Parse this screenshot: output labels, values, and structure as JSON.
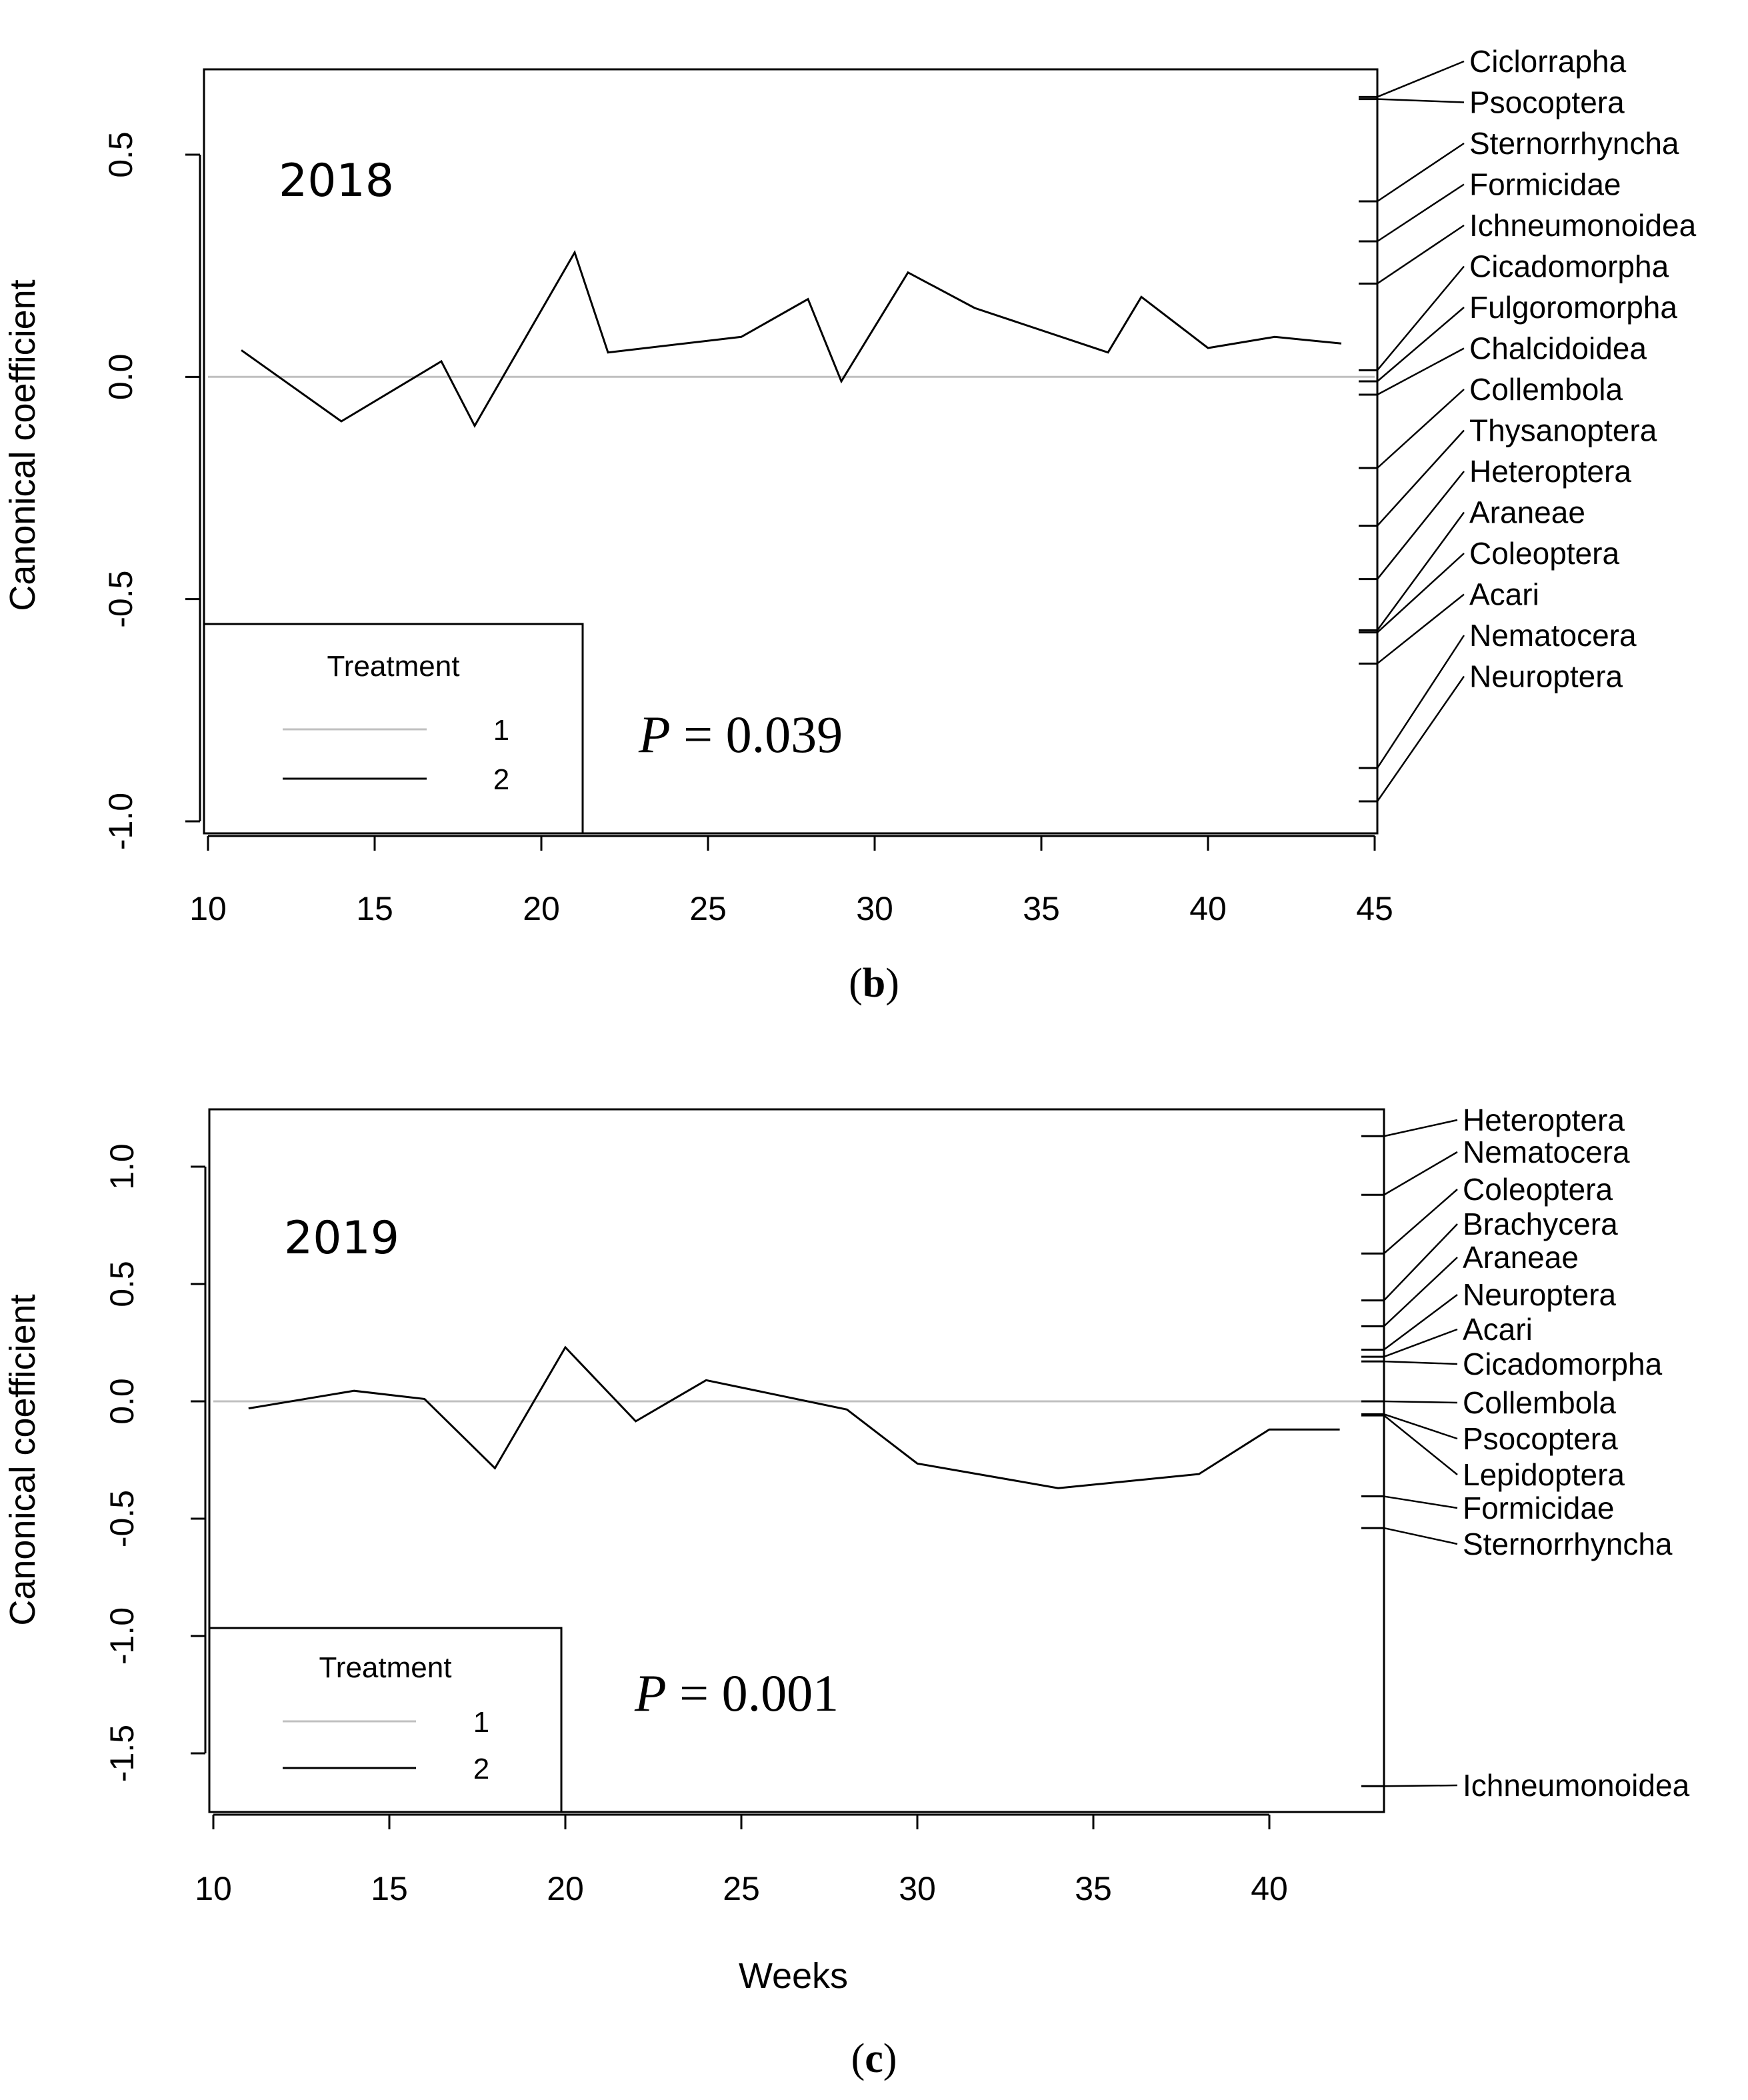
{
  "chart_data": [
    {
      "type": "line",
      "panel_label": "b",
      "annotation_year": "2018",
      "p_label": "P",
      "p_value": "= 0.039",
      "xlabel": "",
      "ylabel": "Canonical coefficient",
      "xlim": [
        10,
        45
      ],
      "ylim": [
        -1.0,
        0.7
      ],
      "x_ticks": [
        10,
        15,
        20,
        25,
        30,
        35,
        40,
        45
      ],
      "y_ticks": [
        -1.0,
        -0.5,
        0.0,
        0.5
      ],
      "y_tick_labels": [
        "-1.0",
        "-0.5",
        "0.0",
        "0.5"
      ],
      "legend_title": "Treatment",
      "series": [
        {
          "name": "1",
          "color": "#c0c0c0",
          "x": [
            10,
            45
          ],
          "y": [
            0,
            0
          ]
        },
        {
          "name": "2",
          "color": "#000000",
          "x": [
            11,
            14,
            17,
            18,
            21,
            22,
            26,
            28,
            29,
            31,
            33,
            37,
            38,
            40,
            42,
            44
          ],
          "y": [
            0.06,
            -0.1,
            0.035,
            -0.11,
            0.28,
            0.055,
            0.09,
            0.175,
            -0.01,
            0.235,
            0.155,
            0.055,
            0.18,
            0.065,
            0.09,
            0.075
          ]
        }
      ],
      "species": [
        {
          "name": "Ciclorrapha",
          "score": 0.63
        },
        {
          "name": "Psocoptera",
          "score": 0.625
        },
        {
          "name": "Sternorrhyncha",
          "score": 0.395
        },
        {
          "name": "Formicidae",
          "score": 0.305
        },
        {
          "name": "Ichneumonoidea",
          "score": 0.21
        },
        {
          "name": "Cicadomorpha",
          "score": 0.015
        },
        {
          "name": "Fulgoromorpha",
          "score": -0.01
        },
        {
          "name": "Chalcidoidea",
          "score": -0.04
        },
        {
          "name": "Collembola",
          "score": -0.205
        },
        {
          "name": "Thysanoptera",
          "score": -0.335
        },
        {
          "name": "Heteroptera",
          "score": -0.455
        },
        {
          "name": "Araneae",
          "score": -0.57
        },
        {
          "name": "Coleoptera",
          "score": -0.575
        },
        {
          "name": "Acari",
          "score": -0.645
        },
        {
          "name": "Nematocera",
          "score": -0.88
        },
        {
          "name": "Neuroptera",
          "score": -0.955
        }
      ]
    },
    {
      "type": "line",
      "panel_label": "c",
      "annotation_year": "2019",
      "p_label": "P",
      "p_value": "= 0.001",
      "xlabel": "Weeks",
      "ylabel": "Canonical coefficient",
      "xlim": [
        10,
        43
      ],
      "ylim": [
        -1.75,
        1.25
      ],
      "x_ticks": [
        10,
        15,
        20,
        25,
        30,
        35,
        40
      ],
      "y_ticks": [
        -1.5,
        -1.0,
        -0.5,
        0.0,
        0.5,
        1.0
      ],
      "y_tick_labels": [
        "-1.5",
        "-1.0",
        "-0.5",
        "0.0",
        "0.5",
        "1.0"
      ],
      "legend_title": "Treatment",
      "series": [
        {
          "name": "1",
          "color": "#c0c0c0",
          "x": [
            10,
            43
          ],
          "y": [
            0,
            0
          ]
        },
        {
          "name": "2",
          "color": "#000000",
          "x": [
            11,
            14,
            16,
            18,
            20,
            22,
            24,
            28,
            30,
            34,
            38,
            40,
            42
          ],
          "y": [
            -0.03,
            0.045,
            0.01,
            -0.285,
            0.23,
            -0.085,
            0.09,
            -0.035,
            -0.265,
            -0.37,
            -0.31,
            -0.12,
            -0.12
          ]
        }
      ],
      "species": [
        {
          "name": "Heteroptera",
          "score": 1.13
        },
        {
          "name": "Nematocera",
          "score": 0.88
        },
        {
          "name": "Coleoptera",
          "score": 0.63
        },
        {
          "name": "Brachycera",
          "score": 0.43
        },
        {
          "name": "Araneae",
          "score": 0.32
        },
        {
          "name": "Neuroptera",
          "score": 0.22
        },
        {
          "name": "Acari",
          "score": 0.19
        },
        {
          "name": "Cicadomorpha",
          "score": 0.17
        },
        {
          "name": "Collembola",
          "score": 0.0
        },
        {
          "name": "Psocoptera",
          "score": -0.055
        },
        {
          "name": "Lepidoptera",
          "score": -0.06
        },
        {
          "name": "Formicidae",
          "score": -0.405
        },
        {
          "name": "Sternorrhyncha",
          "score": -0.54
        },
        {
          "name": "Ichneumonoidea",
          "score": -1.64
        }
      ]
    }
  ]
}
